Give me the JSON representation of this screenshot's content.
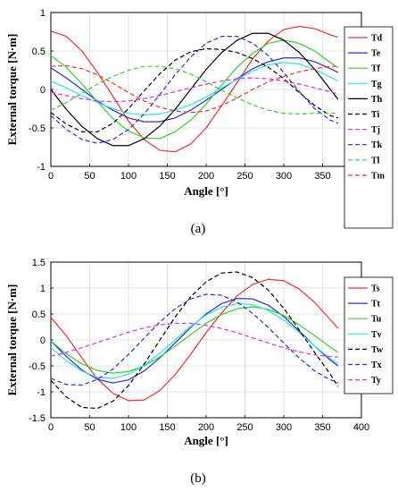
{
  "chart_data": [
    {
      "type": "line",
      "panel_label": "(a)",
      "xlabel": "Angle [°]",
      "ylabel": "External torque  [N·m]",
      "xlim": [
        0,
        400
      ],
      "ylim": [
        -1,
        1
      ],
      "xticks": [
        0,
        50,
        100,
        150,
        200,
        250,
        300,
        350,
        400
      ],
      "yticks": [
        -1,
        -0.5,
        0,
        0.5,
        1
      ],
      "grid": true,
      "legend": "right",
      "x": [
        0,
        20,
        40,
        60,
        80,
        100,
        120,
        140,
        160,
        180,
        200,
        220,
        240,
        260,
        280,
        300,
        320,
        340,
        360,
        370
      ],
      "series": [
        {
          "name": "Td",
          "color": "#ff2a2a",
          "dash": "solid",
          "values": [
            0.76,
            0.69,
            0.5,
            0.22,
            -0.09,
            -0.41,
            -0.65,
            -0.79,
            -0.81,
            -0.71,
            -0.5,
            -0.21,
            0.09,
            0.4,
            0.63,
            0.78,
            0.82,
            0.79,
            0.71,
            0.68
          ]
        },
        {
          "name": "Te",
          "color": "#2a2ae6",
          "dash": "solid",
          "values": [
            0.28,
            0.15,
            0.0,
            -0.15,
            -0.27,
            -0.37,
            -0.42,
            -0.42,
            -0.37,
            -0.27,
            -0.14,
            0.0,
            0.14,
            0.27,
            0.36,
            0.41,
            0.41,
            0.36,
            0.27,
            0.22
          ]
        },
        {
          "name": "Tf",
          "color": "#2ad62a",
          "dash": "solid",
          "values": [
            0.44,
            0.29,
            0.07,
            -0.16,
            -0.38,
            -0.54,
            -0.63,
            -0.64,
            -0.55,
            -0.4,
            -0.19,
            0.06,
            0.29,
            0.47,
            0.6,
            0.64,
            0.6,
            0.5,
            0.35,
            0.28
          ]
        },
        {
          "name": "Tg",
          "color": "#2ae6e6",
          "dash": "solid",
          "values": [
            0.11,
            0.02,
            -0.08,
            -0.17,
            -0.25,
            -0.31,
            -0.33,
            -0.32,
            -0.27,
            -0.2,
            -0.1,
            0.02,
            0.13,
            0.24,
            0.32,
            0.35,
            0.33,
            0.26,
            0.16,
            0.11
          ]
        },
        {
          "name": "Th",
          "color": "#000000",
          "dash": "solid",
          "values": [
            0.0,
            -0.26,
            -0.48,
            -0.64,
            -0.73,
            -0.73,
            -0.64,
            -0.48,
            -0.26,
            0.0,
            0.26,
            0.48,
            0.64,
            0.73,
            0.73,
            0.64,
            0.48,
            0.26,
            0.0,
            -0.13
          ]
        },
        {
          "name": "Ti",
          "color": "#000000",
          "dash": "dashed",
          "values": [
            -0.3,
            -0.45,
            -0.55,
            -0.55,
            -0.44,
            -0.25,
            -0.02,
            0.2,
            0.38,
            0.49,
            0.53,
            0.52,
            0.48,
            0.4,
            0.29,
            0.14,
            -0.04,
            -0.21,
            -0.34,
            -0.37
          ]
        },
        {
          "name": "Tj",
          "color": "#e62ae6",
          "dash": "dashed",
          "values": [
            -0.04,
            -0.08,
            -0.12,
            -0.15,
            -0.16,
            -0.15,
            -0.12,
            -0.08,
            -0.03,
            0.02,
            0.07,
            0.11,
            0.14,
            0.15,
            0.14,
            0.11,
            0.07,
            0.02,
            -0.03,
            -0.06
          ]
        },
        {
          "name": "Tk",
          "color": "#2a2ae6",
          "dash": "dashed",
          "values": [
            -0.34,
            -0.52,
            -0.65,
            -0.7,
            -0.65,
            -0.52,
            -0.32,
            -0.07,
            0.19,
            0.42,
            0.6,
            0.69,
            0.69,
            0.6,
            0.44,
            0.22,
            -0.03,
            -0.25,
            -0.4,
            -0.44
          ]
        },
        {
          "name": "Tl",
          "color": "#2ad62a",
          "dash": "dashed",
          "values": [
            -0.27,
            -0.17,
            -0.05,
            0.07,
            0.17,
            0.25,
            0.3,
            0.3,
            0.27,
            0.2,
            0.1,
            -0.01,
            -0.11,
            -0.2,
            -0.27,
            -0.31,
            -0.32,
            -0.31,
            -0.31,
            -0.31
          ]
        },
        {
          "name": "Tm",
          "color": "#ff2a2a",
          "dash": "dashed",
          "values": [
            0.3,
            0.31,
            0.27,
            0.19,
            0.08,
            -0.04,
            -0.15,
            -0.23,
            -0.28,
            -0.3,
            -0.28,
            -0.21,
            -0.11,
            0.0,
            0.1,
            0.17,
            0.23,
            0.27,
            0.3,
            0.3
          ]
        }
      ]
    },
    {
      "type": "line",
      "panel_label": "(b)",
      "xlabel": "Angle [°]",
      "ylabel": "External torque  [N·m]",
      "xlim": [
        0,
        400
      ],
      "ylim": [
        -1.5,
        1.5
      ],
      "xticks": [
        0,
        50,
        100,
        150,
        200,
        250,
        300,
        350,
        400
      ],
      "yticks": [
        -1.5,
        -1,
        -0.5,
        0,
        0.5,
        1,
        1.5
      ],
      "grid": true,
      "legend": "right",
      "x": [
        0,
        20,
        40,
        60,
        80,
        100,
        120,
        140,
        160,
        180,
        200,
        220,
        240,
        260,
        280,
        300,
        320,
        340,
        360,
        370
      ],
      "series": [
        {
          "name": "Ts",
          "color": "#ff2a2a",
          "dash": "solid",
          "values": [
            0.43,
            0.08,
            -0.35,
            -0.75,
            -1.03,
            -1.17,
            -1.16,
            -0.98,
            -0.67,
            -0.28,
            0.14,
            0.52,
            0.85,
            1.07,
            1.17,
            1.14,
            0.98,
            0.72,
            0.39,
            0.22
          ]
        },
        {
          "name": "Tt",
          "color": "#2a2ae6",
          "dash": "solid",
          "values": [
            -0.02,
            -0.32,
            -0.58,
            -0.76,
            -0.83,
            -0.77,
            -0.6,
            -0.35,
            -0.06,
            0.24,
            0.5,
            0.7,
            0.8,
            0.79,
            0.67,
            0.45,
            0.17,
            -0.12,
            -0.39,
            -0.5
          ]
        },
        {
          "name": "Tu",
          "color": "#2ad62a",
          "dash": "solid",
          "values": [
            -0.02,
            -0.27,
            -0.46,
            -0.59,
            -0.64,
            -0.61,
            -0.5,
            -0.33,
            -0.12,
            0.1,
            0.32,
            0.49,
            0.6,
            0.64,
            0.59,
            0.47,
            0.29,
            0.08,
            -0.14,
            -0.24
          ]
        },
        {
          "name": "Tv",
          "color": "#2ae6e6",
          "dash": "solid",
          "values": [
            -0.15,
            -0.4,
            -0.6,
            -0.72,
            -0.74,
            -0.66,
            -0.49,
            -0.26,
            0.0,
            0.26,
            0.48,
            0.63,
            0.7,
            0.68,
            0.57,
            0.38,
            0.14,
            -0.12,
            -0.36,
            -0.46
          ]
        },
        {
          "name": "Tw",
          "color": "#000000",
          "dash": "dashed",
          "values": [
            -0.78,
            -1.1,
            -1.3,
            -1.32,
            -1.18,
            -0.88,
            -0.47,
            -0.01,
            0.44,
            0.83,
            1.12,
            1.29,
            1.31,
            1.2,
            0.96,
            0.61,
            0.19,
            -0.25,
            -0.66,
            -0.9
          ]
        },
        {
          "name": "Tx",
          "color": "#2a2ae6",
          "dash": "dashed",
          "values": [
            -0.74,
            -0.86,
            -0.87,
            -0.76,
            -0.56,
            -0.28,
            0.03,
            0.34,
            0.6,
            0.79,
            0.88,
            0.86,
            0.73,
            0.51,
            0.24,
            -0.06,
            -0.35,
            -0.6,
            -0.77,
            -0.82
          ]
        },
        {
          "name": "Ty",
          "color": "#e62ae6",
          "dash": "dashed",
          "values": [
            -0.31,
            -0.24,
            -0.15,
            -0.05,
            0.05,
            0.15,
            0.23,
            0.29,
            0.32,
            0.32,
            0.28,
            0.22,
            0.14,
            0.04,
            -0.06,
            -0.15,
            -0.23,
            -0.29,
            -0.32,
            -0.33
          ]
        }
      ]
    }
  ]
}
